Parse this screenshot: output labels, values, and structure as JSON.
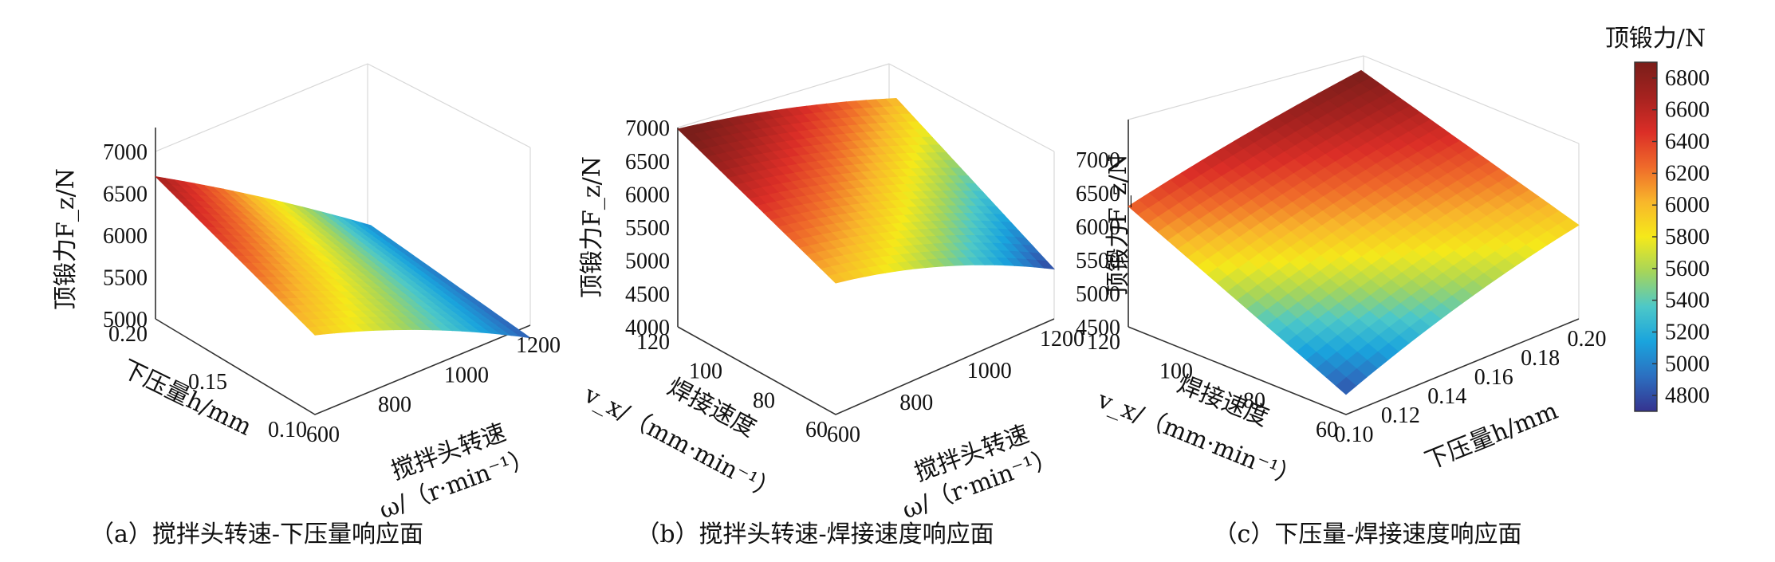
{
  "chart_data": [
    {
      "type": "surface",
      "panel": "a",
      "caption": "（a）搅拌头转速-下压量响应面",
      "zlabel": "顶锻力F_z/N",
      "xlabel_line1": "搅拌头转速",
      "xlabel_line2": "ω/（r·min⁻¹）",
      "ylabel": "下压量h/mm",
      "x_ticks": [
        "600",
        "800",
        "1000",
        "1200"
      ],
      "y_ticks": [
        "0.10",
        "0.15",
        "0.20"
      ],
      "z_ticks": [
        "5000",
        "5500",
        "6000",
        "6500",
        "7000"
      ],
      "xlim": [
        600,
        1200
      ],
      "ylim": [
        0.1,
        0.2
      ],
      "zlim": [
        5000,
        7000
      ],
      "corner_values": {
        "xmin_ymin": 5950,
        "xmax_ymin": 4850,
        "xmin_ymax": 6700,
        "xmax_ymax": 5050
      }
    },
    {
      "type": "surface",
      "panel": "b",
      "caption": "（b）搅拌头转速-焊接速度响应面",
      "zlabel": "顶锻力F_z/N",
      "xlabel_line1": "搅拌头转速",
      "xlabel_line2": "ω/（r·min⁻¹）",
      "ylabel_line1": "焊接速度",
      "ylabel_line2": "v_x/（mm·min⁻¹）",
      "x_ticks": [
        "600",
        "800",
        "1000",
        "1200"
      ],
      "y_ticks": [
        "60",
        "80",
        "100",
        "120"
      ],
      "z_ticks": [
        "4000",
        "4500",
        "5000",
        "5500",
        "6000",
        "6500",
        "7000"
      ],
      "xlim": [
        600,
        1200
      ],
      "ylim": [
        60,
        120
      ],
      "zlim": [
        4000,
        7000
      ],
      "corner_values": {
        "xmin_ymin": 5980,
        "xmax_ymin": 4750,
        "xmin_ymax": 6980,
        "xmax_ymax": 6000
      }
    },
    {
      "type": "surface",
      "panel": "c",
      "caption": "（c）下压量-焊接速度响应面",
      "zlabel": "顶锻力F_z/N",
      "xlabel": "下压量h/mm",
      "ylabel_line1": "焊接速度",
      "ylabel_line2": "v_x/（mm·min⁻¹）",
      "x_ticks": [
        "0.10",
        "0.12",
        "0.14",
        "0.16",
        "0.18",
        "0.20"
      ],
      "y_ticks": [
        "60",
        "80",
        "100",
        "120"
      ],
      "z_ticks": [
        "4500",
        "5000",
        "5500",
        "6000",
        "6500",
        "7000"
      ],
      "xlim": [
        0.1,
        0.2
      ],
      "ylim": [
        60,
        120
      ],
      "zlim": [
        4500,
        7000
      ],
      "corner_values": {
        "xmin_ymin": 4800,
        "xmax_ymin": 5900,
        "xmin_ymax": 6300,
        "xmax_ymax": 6900
      }
    }
  ],
  "colorbar": {
    "title": "顶锻力/N",
    "ticks": [
      "4800",
      "5000",
      "5200",
      "5400",
      "5600",
      "5800",
      "6000",
      "6200",
      "6400",
      "6600",
      "6800"
    ],
    "range": [
      4700,
      6900
    ],
    "colormap": [
      "#35338f",
      "#2c6fc0",
      "#1aa4dd",
      "#4dc8c8",
      "#a6d55a",
      "#f5e91a",
      "#f8b62b",
      "#ef6a2a",
      "#db2e27",
      "#a5221f",
      "#7a1e1a"
    ]
  }
}
